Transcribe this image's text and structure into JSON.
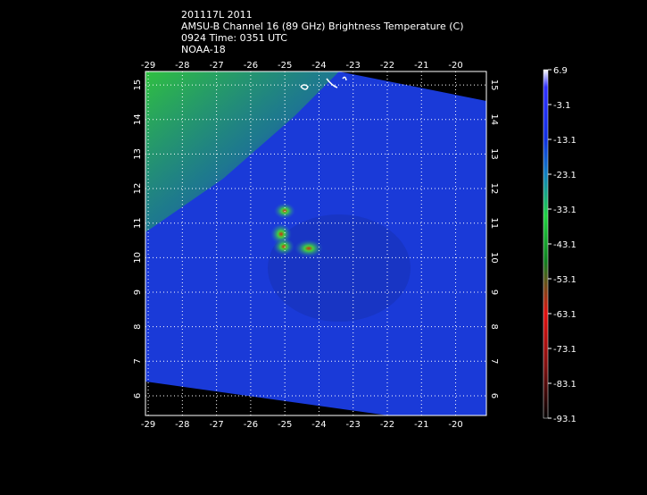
{
  "header": {
    "lines": [
      "201117L 2011",
      "AMSU-B Channel 16 (89 GHz) Brightness Temperature (C)",
      "0924 Time: 0351 UTC",
      "NOAA-18"
    ]
  },
  "x_axis": {
    "ticks": [
      -29,
      -28,
      -27,
      -26,
      -25,
      -24,
      -23,
      -22,
      -21,
      -20
    ],
    "lim": [
      -29.08,
      -19.1
    ]
  },
  "y_axis": {
    "ticks": [
      6,
      7,
      8,
      9,
      10,
      11,
      12,
      13,
      14,
      15
    ],
    "lim": [
      5.43,
      15.39
    ]
  },
  "colorbar": {
    "ticks": [
      6.9,
      -3.1,
      -13.1,
      -23.1,
      -33.1,
      -43.1,
      -53.1,
      -63.1,
      -73.1,
      -83.1,
      -93.1
    ],
    "lim": [
      6.9,
      -93.1
    ]
  }
}
